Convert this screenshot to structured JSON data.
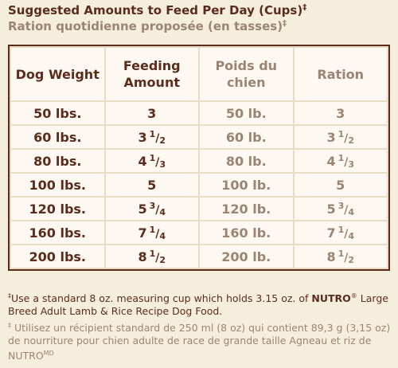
{
  "header": {
    "title": "Suggested Amounts to Feed Per Day (Cups)",
    "subtitle": "Ration quotidienne proposée (en tasses)",
    "mark": "‡"
  },
  "table": {
    "columns": [
      "Dog Weight",
      "Feeding Amount",
      "Poids du chien",
      "Ration"
    ],
    "rows": [
      [
        {
          "whole": "50 lbs."
        },
        {
          "whole": "3"
        },
        {
          "whole": "50 lb."
        },
        {
          "whole": "3"
        }
      ],
      [
        {
          "whole": "60 lbs."
        },
        {
          "whole": "3",
          "num": "1",
          "den": "2"
        },
        {
          "whole": "60 lb."
        },
        {
          "whole": "3",
          "num": "1",
          "den": "2"
        }
      ],
      [
        {
          "whole": "80 lbs."
        },
        {
          "whole": "4",
          "num": "1",
          "den": "3"
        },
        {
          "whole": "80 lb."
        },
        {
          "whole": "4",
          "num": "1",
          "den": "3"
        }
      ],
      [
        {
          "whole": "100 lbs."
        },
        {
          "whole": "5"
        },
        {
          "whole": "100 lb."
        },
        {
          "whole": "5"
        }
      ],
      [
        {
          "whole": "120 lbs."
        },
        {
          "whole": "5",
          "num": "3",
          "den": "4"
        },
        {
          "whole": "120 lb."
        },
        {
          "whole": "5",
          "num": "3",
          "den": "4"
        }
      ],
      [
        {
          "whole": "160 lbs."
        },
        {
          "whole": "7",
          "num": "1",
          "den": "4"
        },
        {
          "whole": "160 lb."
        },
        {
          "whole": "7",
          "num": "1",
          "den": "4"
        }
      ],
      [
        {
          "whole": "200 lbs."
        },
        {
          "whole": "8",
          "num": "1",
          "den": "2"
        },
        {
          "whole": "200 lb."
        },
        {
          "whole": "8",
          "num": "1",
          "den": "2"
        }
      ]
    ]
  },
  "footnotes": {
    "english": {
      "mark": "‡",
      "before": "Use a standard 8 oz. measuring cup which holds 3.15 oz. of ",
      "brand": "NUTRO",
      "registered": "®",
      "after": " Large Breed Adult Lamb & Rice Recipe Dog Food."
    },
    "french": {
      "mark": "‡",
      "before": " Utilisez un récipient standard de 250 ml (8 oz) qui contient 89,3 g (3,15 oz) de nourriture pour chien adulte de race de grande taille Agneau et riz de NUTRO",
      "trademark": "MD"
    }
  }
}
